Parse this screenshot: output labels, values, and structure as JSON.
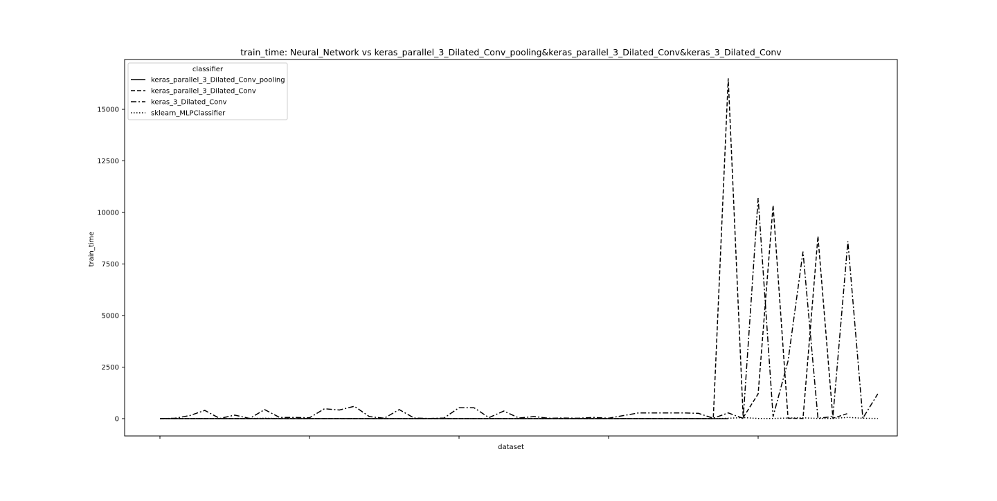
{
  "chart_data": {
    "type": "line",
    "title": "train_time: Neural_Network vs keras_parallel_3_Dilated_Conv_pooling&keras_parallel_3_Dilated_Conv&keras_3_Dilated_Conv",
    "xlabel": "dataset",
    "ylabel": "train_time",
    "ylim": [
      -800,
      17300
    ],
    "yticks": [
      0,
      2500,
      5000,
      7500,
      10000,
      12500,
      15000
    ],
    "yticklabels": [
      "0",
      "2500",
      "5000",
      "7500",
      "10000",
      "12500",
      "15000"
    ],
    "grid": false,
    "legend": {
      "title": "classifier",
      "placement": "upper left"
    },
    "series": [
      {
        "name": "keras_parallel_3_Dilated_Conv_pooling",
        "style": "solid",
        "values": [
          0,
          0,
          0,
          0,
          0,
          0,
          0,
          0,
          0,
          0,
          0,
          0,
          0,
          0,
          0,
          0,
          0,
          0,
          0,
          0,
          0,
          0,
          0,
          0,
          0,
          0,
          0,
          0,
          0,
          0,
          0,
          0,
          0,
          0,
          0,
          0,
          0,
          0,
          0
        ]
      },
      {
        "name": "keras_parallel_3_Dilated_Conv",
        "style": "dashed",
        "values": [
          0,
          0,
          0,
          0,
          0,
          0,
          0,
          0,
          0,
          0,
          0,
          0,
          0,
          0,
          0,
          0,
          0,
          0,
          0,
          0,
          0,
          0,
          0,
          0,
          0,
          0,
          0,
          0,
          0,
          0,
          0,
          0,
          0,
          0,
          0,
          0,
          0,
          0,
          16500,
          50,
          1200,
          10350,
          20,
          10,
          8850,
          20,
          250
        ]
      },
      {
        "name": "keras_3_Dilated_Conv",
        "style": "dashdot",
        "values": [
          0,
          20,
          150,
          400,
          10,
          170,
          10,
          440,
          60,
          60,
          40,
          480,
          420,
          600,
          100,
          20,
          440,
          30,
          10,
          30,
          530,
          530,
          50,
          370,
          30,
          100,
          20,
          30,
          20,
          60,
          20,
          150,
          280,
          280,
          280,
          280,
          260,
          20,
          280,
          10,
          10700,
          100,
          2800,
          8100,
          20,
          100,
          8600,
          20,
          1200
        ]
      },
      {
        "name": "sklearn_MLPClassifier",
        "style": "dotted",
        "values": [
          0,
          5,
          0,
          10,
          5,
          0,
          10,
          20,
          10,
          0,
          5,
          0,
          10,
          5,
          0,
          0,
          5,
          0,
          5,
          0,
          0,
          0,
          5,
          0,
          0,
          5,
          0,
          5,
          0,
          0,
          0,
          5,
          0,
          0,
          0,
          5,
          0,
          0,
          20,
          50,
          10,
          10,
          30,
          40,
          10,
          10,
          60,
          20,
          10
        ]
      }
    ]
  }
}
